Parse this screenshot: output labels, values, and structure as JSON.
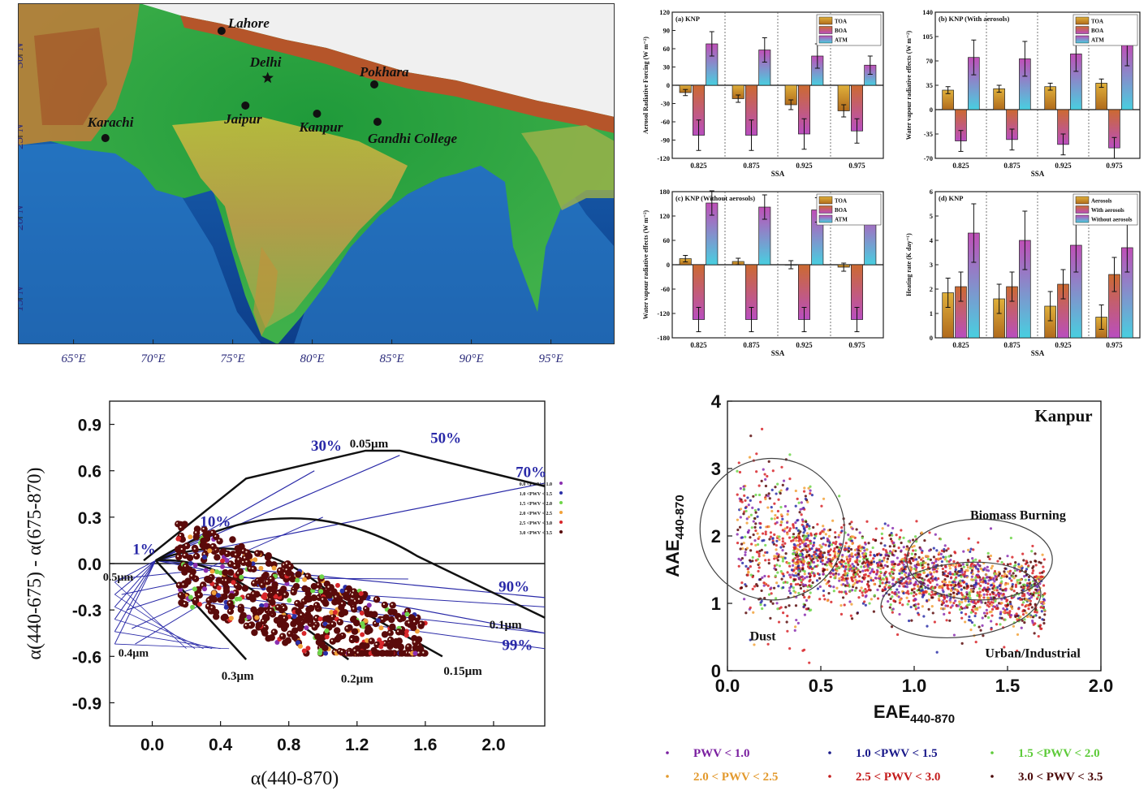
{
  "map": {
    "cities": [
      {
        "name": "Lahore",
        "lon": 74.3,
        "lat": 31.5,
        "marker": "dot"
      },
      {
        "name": "Delhi",
        "lon": 77.2,
        "lat": 28.6,
        "marker": "star"
      },
      {
        "name": "Pokhara",
        "lon": 83.9,
        "lat": 28.2,
        "marker": "dot"
      },
      {
        "name": "Jaipur",
        "lon": 75.8,
        "lat": 26.9,
        "marker": "dot"
      },
      {
        "name": "Kanpur",
        "lon": 80.3,
        "lat": 26.4,
        "marker": "dot"
      },
      {
        "name": "Karachi",
        "lon": 67.0,
        "lat": 24.9,
        "marker": "dot"
      },
      {
        "name": "Gandhi College",
        "lon": 84.1,
        "lat": 25.9,
        "marker": "dot"
      }
    ],
    "lon_ticks": [
      "65°E",
      "70°E",
      "75°E",
      "80°E",
      "85°E",
      "90°E",
      "95°E"
    ],
    "lat_ticks": [
      "30°N",
      "25°N",
      "20°N",
      "15°N"
    ]
  },
  "chart_data": [
    {
      "id": "a",
      "type": "bar",
      "title": "(a) KNP",
      "ylabel": "Aerosol Radiative Forcing (W m⁻²)",
      "xlabel": "SSA",
      "categories": [
        "0.825",
        "0.875",
        "0.925",
        "0.975"
      ],
      "ylim": [
        -120,
        120
      ],
      "yticks": [
        "-120",
        "-90",
        "-60",
        "-30",
        "0",
        "30",
        "60",
        "90",
        "120"
      ],
      "series": [
        {
          "name": "TOA",
          "values": [
            -12,
            -22,
            -32,
            -42
          ],
          "errors": [
            5,
            6,
            8,
            10
          ]
        },
        {
          "name": "BOA",
          "values": [
            -82,
            -82,
            -80,
            -75
          ],
          "errors": [
            25,
            25,
            25,
            20
          ]
        },
        {
          "name": "ATM",
          "values": [
            68,
            58,
            48,
            33
          ],
          "errors": [
            20,
            20,
            20,
            15
          ]
        }
      ]
    },
    {
      "id": "b",
      "type": "bar",
      "title": "(b) KNP (With aerosols)",
      "ylabel": "Water vapour radiative effects (W m⁻²)",
      "xlabel": "SSA",
      "categories": [
        "0.825",
        "0.875",
        "0.925",
        "0.975"
      ],
      "ylim": [
        -70,
        140
      ],
      "yticks": [
        "-70",
        "-35",
        "0",
        "35",
        "70",
        "105",
        "140"
      ],
      "series": [
        {
          "name": "TOA",
          "values": [
            28,
            30,
            33,
            38
          ],
          "errors": [
            5,
            5,
            5,
            6
          ]
        },
        {
          "name": "BOA",
          "values": [
            -45,
            -43,
            -50,
            -55
          ],
          "errors": [
            15,
            15,
            15,
            15
          ]
        },
        {
          "name": "ATM",
          "values": [
            75,
            73,
            80,
            93
          ],
          "errors": [
            25,
            25,
            25,
            30
          ]
        }
      ]
    },
    {
      "id": "c",
      "type": "bar",
      "title": "(c) KNP (Without aerosols)",
      "ylabel": "Water vapour radiative effects (W m⁻²)",
      "xlabel": "SSA",
      "categories": [
        "0.825",
        "0.875",
        "0.925",
        "0.975"
      ],
      "ylim": [
        -180,
        180
      ],
      "yticks": [
        "-180",
        "-120",
        "-60",
        "0",
        "60",
        "120",
        "180"
      ],
      "series": [
        {
          "name": "TOA",
          "values": [
            15,
            8,
            0,
            -6
          ],
          "errors": [
            8,
            8,
            10,
            10
          ]
        },
        {
          "name": "BOA",
          "values": [
            -135,
            -135,
            -135,
            -135
          ],
          "errors": [
            30,
            30,
            30,
            30
          ]
        },
        {
          "name": "ATM",
          "values": [
            152,
            142,
            135,
            132
          ],
          "errors": [
            30,
            30,
            30,
            30
          ]
        }
      ]
    },
    {
      "id": "d",
      "type": "bar",
      "title": "(d) KNP",
      "ylabel": "Heating rate (K day⁻¹)",
      "xlabel": "SSA",
      "categories": [
        "0.825",
        "0.875",
        "0.925",
        "0.975"
      ],
      "ylim": [
        0,
        6
      ],
      "yticks": [
        "0",
        "1",
        "2",
        "3",
        "4",
        "5",
        "6"
      ],
      "series": [
        {
          "name": "Aerosols",
          "values": [
            1.85,
            1.6,
            1.3,
            0.85
          ],
          "errors": [
            0.6,
            0.6,
            0.6,
            0.5
          ]
        },
        {
          "name": "With aerosols",
          "values": [
            2.1,
            2.1,
            2.2,
            2.6
          ],
          "errors": [
            0.6,
            0.6,
            0.6,
            0.7
          ]
        },
        {
          "name": "Without aerosols",
          "values": [
            4.3,
            4.0,
            3.8,
            3.7
          ],
          "errors": [
            1.2,
            1.2,
            1.1,
            1.0
          ]
        }
      ]
    },
    {
      "id": "angstrom",
      "type": "scatter",
      "xlabel": "α(440-870)",
      "ylabel": "α(440-675) - α(675-870)",
      "xlim": [
        -0.25,
        2.3
      ],
      "ylim": [
        -1.05,
        1.05
      ],
      "xticks": [
        "0.0",
        "0.4",
        "0.8",
        "1.2",
        "1.6",
        "2.0"
      ],
      "yticks": [
        "0.9",
        "0.6",
        "0.3",
        "0.0",
        "-0.3",
        "-0.6",
        "-0.9"
      ],
      "grid_annotations": [
        "1%",
        "10%",
        "30%",
        "50%",
        "70%",
        "90%",
        "99%",
        "0.05µm",
        "0.1µm",
        "0.15µm",
        "0.2µm",
        "0.3µm",
        "0.4µm",
        "0.5µm"
      ],
      "legend": [
        "0.0 <PWV < 1.0",
        "1.0 <PWV < 1.5",
        "1.5 <PWV < 2.0",
        "2.0 <PWV < 2.5",
        "2.5 <PWV < 3.0",
        "3.0 <PWV < 3.5"
      ],
      "cluster": {
        "x_range": [
          0.05,
          1.75
        ],
        "y_range": [
          -0.55,
          0.35
        ]
      }
    },
    {
      "id": "kanpur",
      "type": "scatter",
      "title": "Kanpur",
      "xlabel": "EAE",
      "xlabel_sub": "440-870",
      "ylabel": "AAE",
      "ylabel_sub": "440-870",
      "xlim": [
        0,
        2
      ],
      "ylim": [
        0,
        4
      ],
      "xticks": [
        "0.0",
        "0.5",
        "1.0",
        "1.5",
        "2.0"
      ],
      "yticks": [
        "0",
        "1",
        "2",
        "3",
        "4"
      ],
      "regions": [
        "Dust",
        "Biomass Burning",
        "Urban/Industrial"
      ],
      "legend": [
        "PWV < 1.0",
        "1.0 <PWV < 1.5",
        "1.5 <PWV < 2.0",
        "2.0 < PWV < 2.5",
        "2.5 < PWV < 3.0",
        "3.0 < PWV < 3.5"
      ]
    }
  ],
  "colors": {
    "toa": "#d49a2c",
    "boa": "#b54fa8",
    "atm": "#4fc6d6",
    "pwv": [
      "#8b2fb0",
      "#2b2fa8",
      "#6fd64a",
      "#f2a23a",
      "#d8262a",
      "#5a0a0a"
    ]
  }
}
